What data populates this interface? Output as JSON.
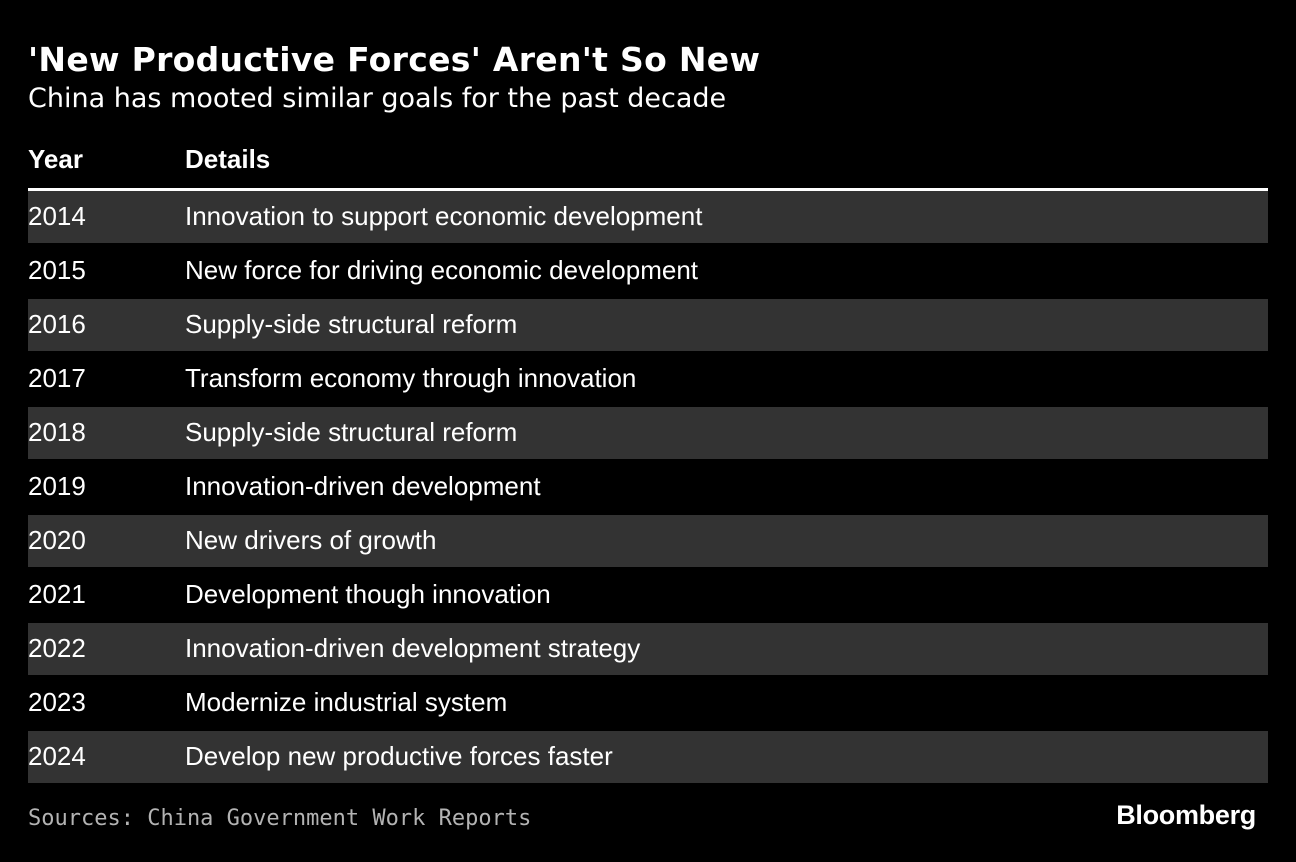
{
  "chart_data": {
    "type": "table",
    "title": "'New Productive Forces' Aren't So New",
    "subtitle": "China has mooted similar goals for the past decade",
    "columns": [
      "Year",
      "Details"
    ],
    "rows": [
      {
        "year": "2014",
        "details": "Innovation to support economic development"
      },
      {
        "year": "2015",
        "details": "New force for driving economic development"
      },
      {
        "year": "2016",
        "details": "Supply-side structural reform"
      },
      {
        "year": "2017",
        "details": "Transform economy through innovation"
      },
      {
        "year": "2018",
        "details": "Supply-side structural reform"
      },
      {
        "year": "2019",
        "details": "Innovation-driven development"
      },
      {
        "year": "2020",
        "details": "New drivers of growth"
      },
      {
        "year": "2021",
        "details": "Development though innovation"
      },
      {
        "year": "2022",
        "details": "Innovation-driven development strategy"
      },
      {
        "year": "2023",
        "details": "Modernize industrial system"
      },
      {
        "year": "2024",
        "details": "Develop new productive forces faster"
      }
    ],
    "source": "Sources: China Government Work Reports",
    "brand": "Bloomberg"
  },
  "colors": {
    "background": "#000000",
    "text": "#ffffff",
    "shaded_row": "#333333",
    "source_text": "#b3b3b3"
  }
}
